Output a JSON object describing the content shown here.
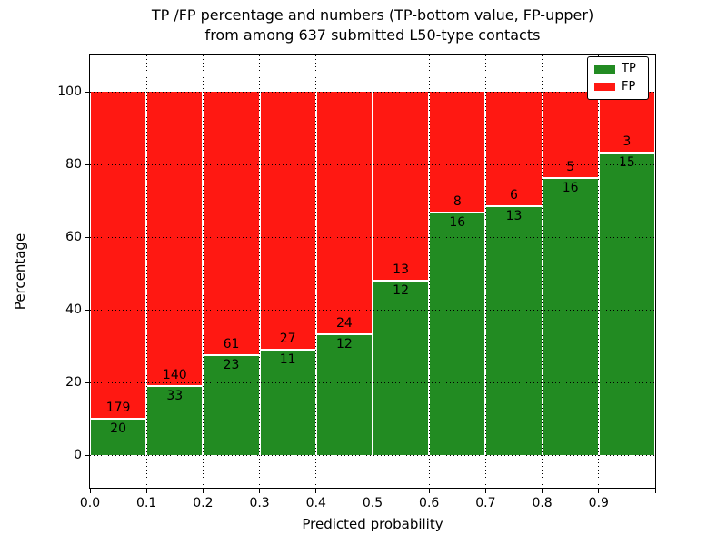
{
  "title": {
    "line1": "TP /FP percentage and numbers (TP-bottom value, FP-upper)",
    "line2": "from among 637 submitted L50-type contacts"
  },
  "axes": {
    "ylabel": "Percentage",
    "xlabel": "Predicted probability",
    "y_tick_labels": [
      "0",
      "20",
      "40",
      "60",
      "80",
      "100"
    ],
    "x_tick_labels": [
      "0.0",
      "0.1",
      "0.2",
      "0.3",
      "0.4",
      "0.5",
      "0.6",
      "0.7",
      "0.8",
      "0.9"
    ]
  },
  "legend": {
    "items": [
      {
        "label": "TP",
        "color": "#228b22"
      },
      {
        "label": "FP",
        "color": "#ff1812"
      }
    ],
    "position": "upper right"
  },
  "colors": {
    "tp": "#228b22",
    "fp": "#ff1812",
    "grid": "#000000",
    "frame": "#000000",
    "background": "#ffffff",
    "text": "#000000"
  },
  "chart_data": {
    "type": "bar",
    "stacked": true,
    "normalized_to_percent": true,
    "title": "TP /FP percentage and numbers (TP-bottom value, FP-upper) from among 637 submitted L50-type contacts",
    "xlabel": "Predicted probability",
    "ylabel": "Percentage",
    "total_contacts": 637,
    "bin_width": 0.1,
    "categories": [
      "0.0-0.1",
      "0.1-0.2",
      "0.2-0.3",
      "0.3-0.4",
      "0.4-0.5",
      "0.5-0.6",
      "0.6-0.7",
      "0.7-0.8",
      "0.8-0.9",
      "0.9-1.0"
    ],
    "bin_starts": [
      0.0,
      0.1,
      0.2,
      0.3,
      0.4,
      0.5,
      0.6,
      0.7,
      0.8,
      0.9
    ],
    "series": [
      {
        "name": "TP",
        "color": "#228b22",
        "counts": [
          20,
          33,
          23,
          11,
          12,
          12,
          16,
          13,
          16,
          15
        ]
      },
      {
        "name": "FP",
        "color": "#ff1812",
        "counts": [
          179,
          140,
          61,
          27,
          24,
          13,
          8,
          6,
          5,
          3
        ]
      }
    ],
    "tp_percent_of_bin": [
      10.1,
      19.1,
      27.4,
      28.9,
      33.3,
      48.0,
      66.7,
      68.4,
      76.2,
      83.3
    ],
    "bar_total_percent": 100,
    "ylim": [
      -9,
      110
    ],
    "xlim": [
      0,
      1
    ],
    "y_ticks": [
      0,
      20,
      40,
      60,
      80,
      100
    ],
    "x_ticks": [
      0.0,
      0.1,
      0.2,
      0.3,
      0.4,
      0.5,
      0.6,
      0.7,
      0.8,
      0.9
    ],
    "grid": "dotted",
    "legend_position": "upper right"
  }
}
